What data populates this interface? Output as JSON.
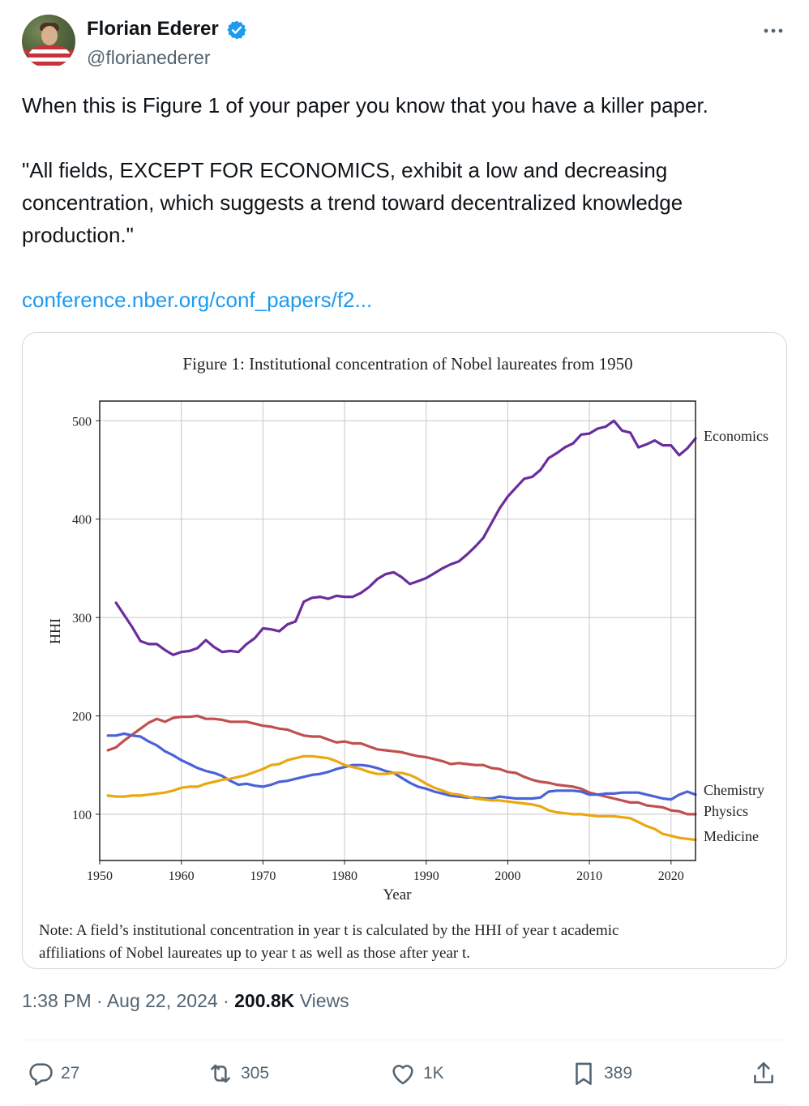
{
  "tweet": {
    "author_name": "Florian Ederer",
    "author_handle": "@florianederer",
    "text_lines": [
      "When this is Figure 1 of your paper you know that you have a killer paper.",
      "\"All fields, EXCEPT FOR ECONOMICS, exhibit a low and decreasing",
      "concentration, which suggests a trend toward decentralized knowledge",
      "production.\""
    ],
    "link": "conference.nber.org/conf_papers/f2...",
    "time": "1:38 PM",
    "date": "Aug 22, 2024",
    "views_count": "200.8K",
    "views_label": "Views"
  },
  "actions": {
    "replies": "27",
    "reposts": "305",
    "likes": "1K",
    "bookmarks": "389"
  },
  "colors": {
    "economics": "#6a2d9c",
    "physics": "#c0504d",
    "chemistry": "#4a62d8",
    "medicine": "#eaa710",
    "link": "#1d9bf0",
    "verified": "#1d9bf0"
  },
  "icons": [
    "verified-badge-icon",
    "more-icon",
    "reply-icon",
    "repost-icon",
    "like-icon",
    "bookmark-icon",
    "share-icon"
  ],
  "chart_data": {
    "type": "line",
    "title": "Figure 1: Institutional concentration of Nobel laureates from 1950",
    "xlabel": "Year",
    "ylabel": "HHI",
    "xlim": [
      1950,
      2023
    ],
    "ylim": [
      53,
      520
    ],
    "xticks": [
      1950,
      1960,
      1970,
      1980,
      1990,
      2000,
      2010,
      2020
    ],
    "yticks": [
      100,
      200,
      300,
      400,
      500
    ],
    "grid": true,
    "note_line1": "Note: A field’s institutional concentration in year t is calculated by the HHI of year t academic",
    "note_line2": "affiliations of Nobel laureates up to year t as well as those after year t.",
    "series": [
      {
        "name": "Economics",
        "x": [
          1952,
          1954,
          1955,
          1956,
          1957,
          1958,
          1959,
          1960,
          1961,
          1962,
          1963,
          1964,
          1965,
          1966,
          1967,
          1968,
          1969,
          1970,
          1971,
          1972,
          1973,
          1974,
          1975,
          1976,
          1977,
          1978,
          1979,
          1980,
          1981,
          1982,
          1983,
          1984,
          1985,
          1986,
          1987,
          1988,
          1989,
          1990,
          1991,
          1992,
          1993,
          1994,
          1995,
          1996,
          1997,
          1998,
          1999,
          2000,
          2001,
          2002,
          2003,
          2004,
          2005,
          2006,
          2007,
          2008,
          2009,
          2010,
          2011,
          2012,
          2013,
          2014,
          2015,
          2016,
          2017,
          2018,
          2019,
          2020,
          2021,
          2022,
          2023
        ],
        "values": [
          315,
          290,
          276,
          273,
          273,
          267,
          262,
          265,
          266,
          269,
          277,
          270,
          265,
          266,
          265,
          273,
          279,
          289,
          288,
          286,
          293,
          296,
          316,
          320,
          321,
          319,
          322,
          321,
          321,
          325,
          331,
          339,
          344,
          346,
          341,
          334,
          337,
          340,
          345,
          350,
          354,
          357,
          364,
          372,
          381,
          396,
          411,
          423,
          432,
          441,
          443,
          450,
          462,
          467,
          473,
          477,
          486,
          487,
          492,
          494,
          500,
          490,
          488,
          473,
          476,
          480,
          475,
          475,
          465,
          472,
          482
        ]
      },
      {
        "name": "Physics",
        "x": [
          1951,
          1952,
          1953,
          1954,
          1955,
          1956,
          1957,
          1958,
          1959,
          1960,
          1961,
          1962,
          1963,
          1964,
          1965,
          1966,
          1967,
          1968,
          1969,
          1970,
          1971,
          1972,
          1973,
          1974,
          1975,
          1976,
          1977,
          1978,
          1979,
          1980,
          1981,
          1982,
          1983,
          1984,
          1985,
          1986,
          1987,
          1988,
          1989,
          1990,
          1991,
          1992,
          1993,
          1994,
          1995,
          1996,
          1997,
          1998,
          1999,
          2000,
          2001,
          2002,
          2003,
          2004,
          2005,
          2006,
          2007,
          2008,
          2009,
          2010,
          2011,
          2012,
          2013,
          2014,
          2015,
          2016,
          2017,
          2018,
          2019,
          2020,
          2021,
          2022,
          2023
        ],
        "values": [
          165,
          168,
          175,
          181,
          187,
          193,
          197,
          194,
          198,
          199,
          199,
          200,
          197,
          197,
          196,
          194,
          194,
          194,
          192,
          190,
          189,
          187,
          186,
          183,
          180,
          179,
          179,
          176,
          173,
          174,
          172,
          172,
          169,
          166,
          165,
          164,
          163,
          161,
          159,
          158,
          156,
          154,
          151,
          152,
          151,
          150,
          150,
          147,
          146,
          143,
          142,
          138,
          135,
          133,
          132,
          130,
          129,
          128,
          126,
          122,
          120,
          118,
          116,
          114,
          112,
          112,
          109,
          108,
          107,
          104,
          103,
          100,
          100
        ]
      },
      {
        "name": "Chemistry",
        "x": [
          1951,
          1952,
          1953,
          1954,
          1955,
          1956,
          1957,
          1958,
          1959,
          1960,
          1961,
          1962,
          1963,
          1964,
          1965,
          1966,
          1967,
          1968,
          1969,
          1970,
          1971,
          1972,
          1973,
          1974,
          1975,
          1976,
          1977,
          1978,
          1979,
          1980,
          1981,
          1982,
          1983,
          1984,
          1985,
          1986,
          1987,
          1988,
          1989,
          1990,
          1991,
          1992,
          1993,
          1994,
          1995,
          1996,
          1997,
          1998,
          1999,
          2000,
          2001,
          2002,
          2003,
          2004,
          2005,
          2006,
          2007,
          2008,
          2009,
          2010,
          2011,
          2012,
          2013,
          2014,
          2015,
          2016,
          2017,
          2018,
          2019,
          2020,
          2021,
          2022,
          2023
        ],
        "values": [
          180,
          180,
          182,
          180,
          179,
          174,
          170,
          164,
          160,
          155,
          151,
          147,
          144,
          142,
          139,
          134,
          130,
          131,
          129,
          128,
          130,
          133,
          134,
          136,
          138,
          140,
          141,
          143,
          146,
          148,
          150,
          150,
          149,
          147,
          144,
          142,
          137,
          132,
          128,
          126,
          123,
          121,
          119,
          118,
          117,
          117,
          116,
          116,
          118,
          117,
          116,
          116,
          116,
          117,
          123,
          124,
          124,
          124,
          123,
          120,
          120,
          121,
          121,
          122,
          122,
          122,
          120,
          118,
          116,
          115,
          120,
          123,
          120
        ]
      },
      {
        "name": "Medicine",
        "x": [
          1951,
          1952,
          1953,
          1954,
          1955,
          1956,
          1957,
          1958,
          1959,
          1960,
          1961,
          1962,
          1963,
          1964,
          1965,
          1966,
          1967,
          1968,
          1969,
          1970,
          1971,
          1972,
          1973,
          1974,
          1975,
          1976,
          1977,
          1978,
          1979,
          1980,
          1981,
          1982,
          1983,
          1984,
          1985,
          1986,
          1987,
          1988,
          1989,
          1990,
          1991,
          1992,
          1993,
          1994,
          1995,
          1996,
          1997,
          1998,
          1999,
          2000,
          2001,
          2002,
          2003,
          2004,
          2005,
          2006,
          2007,
          2008,
          2009,
          2010,
          2011,
          2012,
          2013,
          2014,
          2015,
          2016,
          2017,
          2018,
          2019,
          2020,
          2021,
          2022,
          2023
        ],
        "values": [
          119,
          118,
          118,
          119,
          119,
          120,
          121,
          122,
          124,
          127,
          128,
          128,
          131,
          133,
          135,
          136,
          138,
          140,
          143,
          146,
          150,
          151,
          155,
          157,
          159,
          159,
          158,
          157,
          154,
          150,
          148,
          146,
          143,
          141,
          141,
          142,
          142,
          140,
          136,
          131,
          127,
          124,
          121,
          120,
          118,
          116,
          115,
          114,
          114,
          113,
          112,
          111,
          110,
          108,
          104,
          102,
          101,
          100,
          100,
          99,
          98,
          98,
          98,
          97,
          96,
          92,
          88,
          85,
          80,
          78,
          76,
          75,
          74
        ]
      }
    ]
  }
}
